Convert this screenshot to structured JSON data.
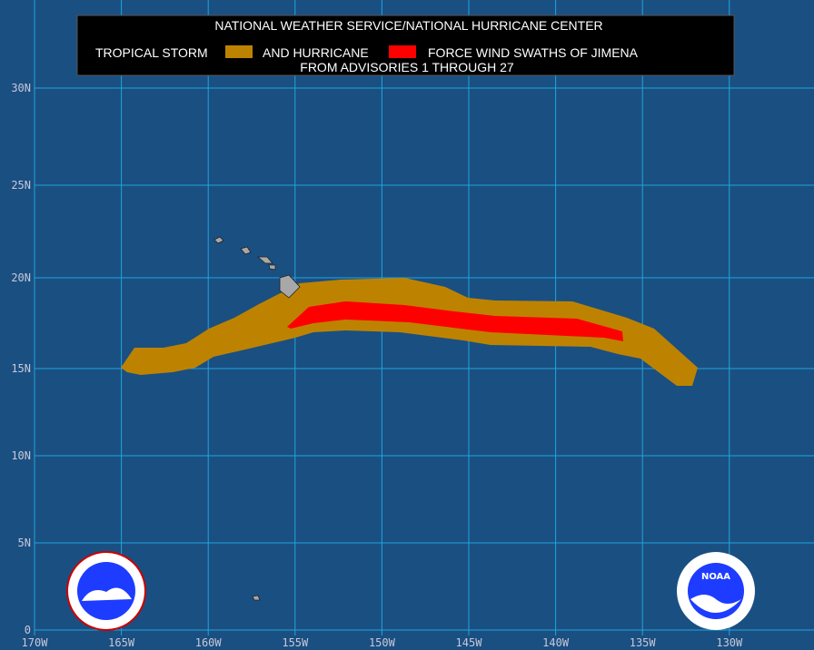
{
  "header": {
    "title": "NATIONAL WEATHER SERVICE/NATIONAL HURRICANE CENTER",
    "legend_left": "TROPICAL STORM",
    "legend_mid": "AND HURRICANE",
    "legend_right": "FORCE WIND SWATHS OF JIMENA",
    "subtitle": "FROM ADVISORIES 1 THROUGH 27"
  },
  "legend": {
    "tropical_storm_color": "#bd8300",
    "hurricane_color": "#ff0000"
  },
  "axes": {
    "latitude_labels": [
      "30N",
      "25N",
      "20N",
      "15N",
      "10N",
      "5N",
      "0"
    ],
    "longitude_labels": [
      "170W",
      "165W",
      "160W",
      "155W",
      "150W",
      "145W",
      "140W",
      "135W",
      "130W"
    ]
  },
  "logos": {
    "right": "NOAA"
  }
}
